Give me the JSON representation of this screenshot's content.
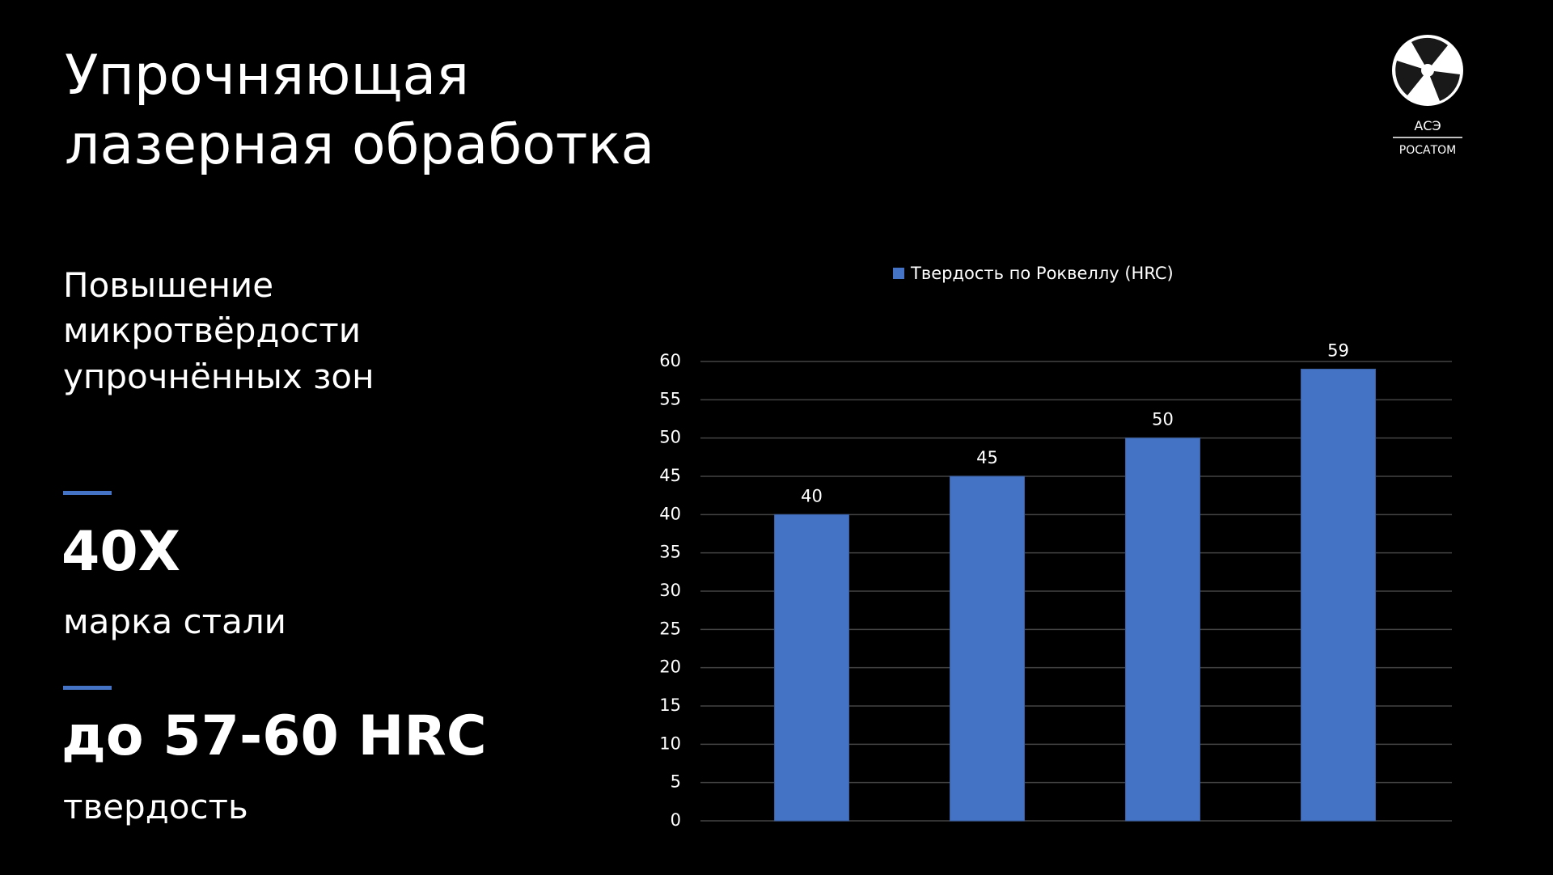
{
  "header": {
    "title_lines": [
      "Упрочняющая",
      "лазерная обработка"
    ]
  },
  "logo": {
    "top": "АСЭ",
    "bottom": "РОСАТОМ"
  },
  "left": {
    "lead_lines": [
      "Повышение",
      "микротвёрдости",
      "упрочнённых зон"
    ],
    "facts": [
      {
        "value": "40Х",
        "caption": "марка стали"
      },
      {
        "value": "до 57-60 HRC",
        "caption": "твердость"
      }
    ]
  },
  "chart_data": {
    "type": "bar",
    "categories": [
      null,
      null,
      null,
      null
    ],
    "series": [
      {
        "name": "Твердость по Роквеллу (HRC)",
        "color": "#4472c4",
        "values": [
          40,
          45,
          50,
          59
        ]
      }
    ],
    "ylim": [
      0,
      60
    ],
    "yticks": [
      0,
      5,
      10,
      15,
      20,
      25,
      30,
      35,
      40,
      45,
      50,
      55,
      60
    ],
    "grid": true,
    "legend": "top"
  }
}
